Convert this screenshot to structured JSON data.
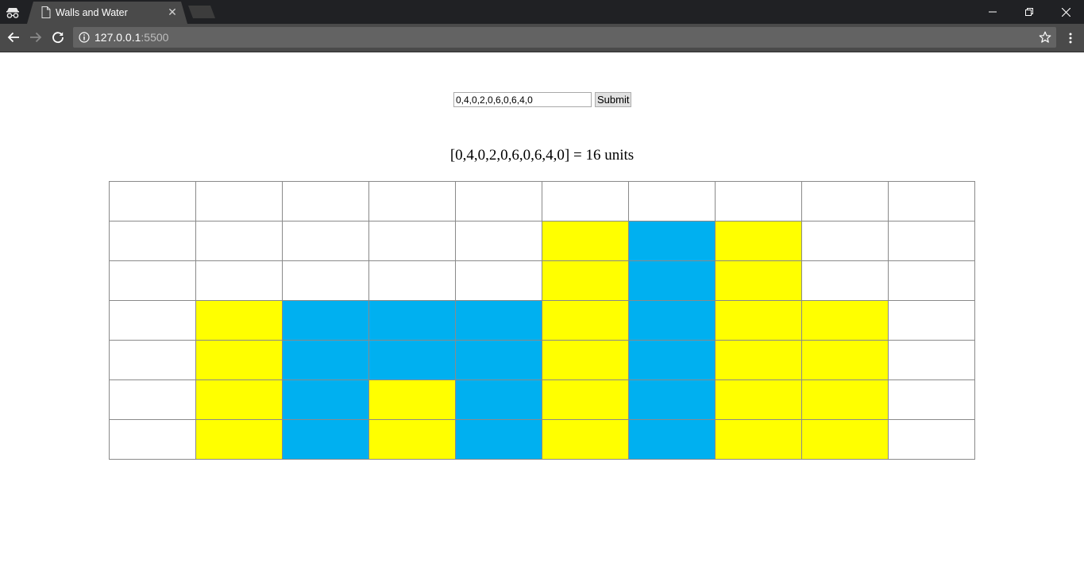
{
  "browser": {
    "tab_title": "Walls and Water",
    "url_host": "127.0.0.1",
    "url_port": ":5500"
  },
  "form": {
    "input_value": "0,4,0,2,0,6,0,6,4,0",
    "submit_label": "Submit"
  },
  "result": {
    "text": "[0,4,0,2,0,6,0,6,4,0] = 16 units"
  },
  "grid": {
    "heights": [
      0,
      4,
      0,
      2,
      0,
      6,
      0,
      6,
      4,
      0
    ],
    "total_rows": 7,
    "wall_color": "#ffff00",
    "water_color": "#00b0f0",
    "empty_color": "#ffffff",
    "rows": [
      [
        "empty",
        "empty",
        "empty",
        "empty",
        "empty",
        "empty",
        "empty",
        "empty",
        "empty",
        "empty"
      ],
      [
        "empty",
        "empty",
        "empty",
        "empty",
        "empty",
        "wall",
        "water",
        "wall",
        "empty",
        "empty"
      ],
      [
        "empty",
        "empty",
        "empty",
        "empty",
        "empty",
        "wall",
        "water",
        "wall",
        "empty",
        "empty"
      ],
      [
        "empty",
        "wall",
        "water",
        "water",
        "water",
        "wall",
        "water",
        "wall",
        "wall",
        "empty"
      ],
      [
        "empty",
        "wall",
        "water",
        "water",
        "water",
        "wall",
        "water",
        "wall",
        "wall",
        "empty"
      ],
      [
        "empty",
        "wall",
        "water",
        "wall",
        "water",
        "wall",
        "water",
        "wall",
        "wall",
        "empty"
      ],
      [
        "empty",
        "wall",
        "water",
        "wall",
        "water",
        "wall",
        "water",
        "wall",
        "wall",
        "empty"
      ]
    ]
  },
  "icons": {
    "incognito": "incognito-icon",
    "document": "document-icon",
    "close": "close-icon",
    "back": "back-arrow-icon",
    "forward": "forward-arrow-icon",
    "reload": "reload-icon",
    "info": "info-icon",
    "star": "star-icon",
    "menu": "kebab-menu-icon"
  }
}
